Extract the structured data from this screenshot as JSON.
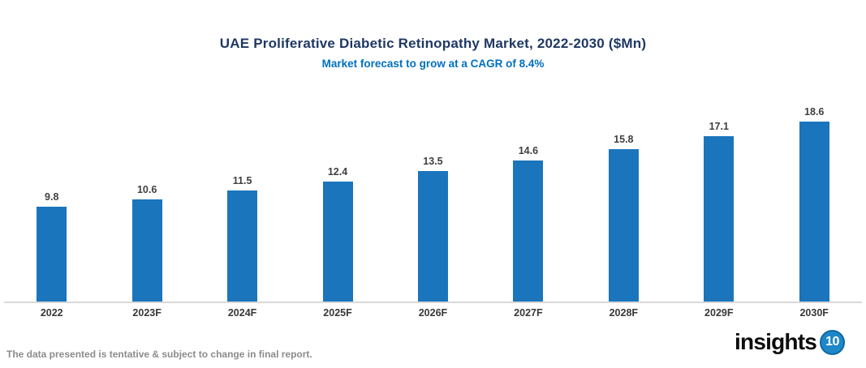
{
  "header": {
    "title": "UAE Proliferative Diabetic Retinopathy Market, 2022-2030 ($Mn)",
    "subtitle": "Market forecast to grow at a CAGR of 8.4%"
  },
  "chart_data": {
    "type": "bar",
    "categories": [
      "2022",
      "2023F",
      "2024F",
      "2025F",
      "2026F",
      "2027F",
      "2028F",
      "2029F",
      "2030F"
    ],
    "values": [
      9.8,
      10.6,
      11.5,
      12.4,
      13.5,
      14.6,
      15.8,
      17.1,
      18.6
    ],
    "title": "UAE Proliferative Diabetic Retinopathy Market, 2022-2030 ($Mn)",
    "subtitle": "Market forecast to grow at a CAGR of 8.4%",
    "xlabel": "",
    "ylabel": "",
    "ylim": [
      0,
      19.5
    ],
    "grid": false,
    "legend_position": "none",
    "value_labels": true,
    "bar_color": "#1B75BC"
  },
  "footer": {
    "note": "The data presented is tentative & subject to change in final report.",
    "logo_text": "insights",
    "logo_badge": "10"
  },
  "colors": {
    "title": "#1F3864",
    "subtitle": "#0070C0",
    "bar": "#1B75BC",
    "axis_line": "#D8D8D8",
    "value_label": "#3F3F3F",
    "category_label": "#383838",
    "footer_note": "#8C8C8C",
    "logo_badge_bg": "#1E87C9",
    "logo_badge_ring": "#10699E"
  }
}
